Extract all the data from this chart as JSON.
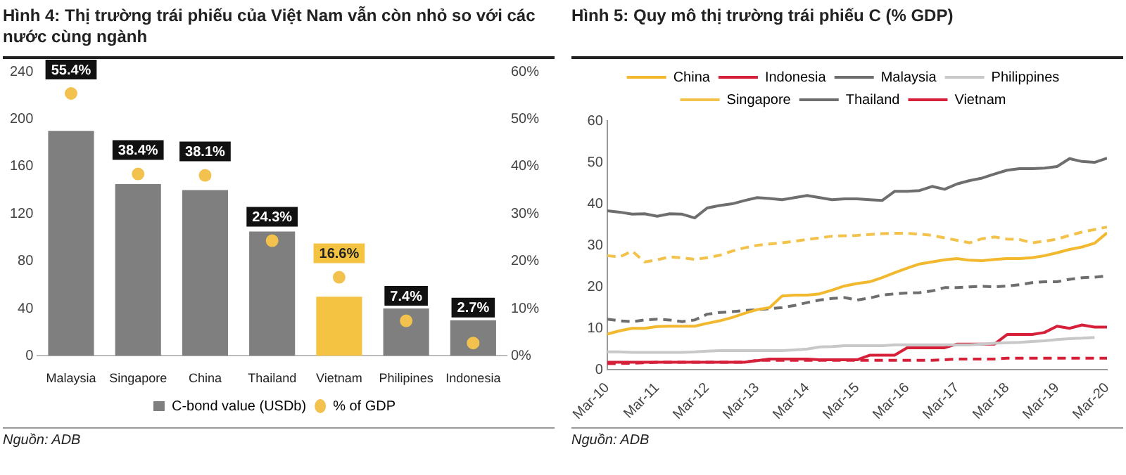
{
  "chart_data": [
    {
      "type": "bar",
      "title": "Hình 4: Thị trường trái phiếu của Việt Nam vẫn còn nhỏ so với các nước cùng ngành",
      "categories": [
        "Malaysia",
        "Singapore",
        "China",
        "Thailand",
        "Vietnam",
        "Philipines",
        "Indonesia"
      ],
      "series": [
        {
          "name": "C-bond value (USDb)",
          "type": "bar",
          "color": "#7f7f7f",
          "colors": [
            "#7f7f7f",
            "#7f7f7f",
            "#7f7f7f",
            "#7f7f7f",
            "#f5c342",
            "#7f7f7f",
            "#7f7f7f"
          ],
          "values": [
            190,
            145,
            140,
            105,
            50,
            40,
            30
          ]
        },
        {
          "name": "% of GDP",
          "type": "scatter",
          "axis": "y2",
          "color": "#f2c14e",
          "values": [
            55.4,
            38.4,
            38.1,
            24.3,
            16.6,
            7.4,
            2.7
          ],
          "data_labels": true,
          "value_labels": [
            "55.4%",
            "38.4%",
            "38.1%",
            "24.3%",
            "16.6%",
            "7.4%",
            "2.7%"
          ]
        }
      ],
      "ylim": [
        0,
        240
      ],
      "yticks": [
        0,
        40,
        80,
        120,
        160,
        200,
        240
      ],
      "y2lim": [
        0,
        60
      ],
      "y2ticks": [
        {
          "value": 0,
          "label": "0%"
        },
        {
          "value": 10,
          "label": "10%"
        },
        {
          "value": 20,
          "label": "20%"
        },
        {
          "value": 30,
          "label": "30%"
        },
        {
          "value": 40,
          "label": "40%"
        },
        {
          "value": 50,
          "label": "50%"
        },
        {
          "value": 60,
          "label": "60%"
        }
      ],
      "grid": false,
      "legend": "bottom",
      "annotations": [
        "Nguồn: ADB"
      ]
    },
    {
      "type": "line",
      "title": "Hình 5: Quy mô thị trường trái phiếu C (% GDP)",
      "x": [
        "2010-03",
        "2010-06",
        "2010-09",
        "2010-12",
        "2011-03",
        "2011-06",
        "2011-09",
        "2011-12",
        "2012-03",
        "2012-06",
        "2012-09",
        "2012-12",
        "2013-03",
        "2013-06",
        "2013-09",
        "2013-12",
        "2014-03",
        "2014-06",
        "2014-09",
        "2014-12",
        "2015-03",
        "2015-06",
        "2015-09",
        "2015-12",
        "2016-03",
        "2016-06",
        "2016-09",
        "2016-12",
        "2017-03",
        "2017-06",
        "2017-09",
        "2017-12",
        "2018-03",
        "2018-06",
        "2018-09",
        "2018-12",
        "2019-03",
        "2019-06",
        "2019-09",
        "2019-12",
        "2020-03"
      ],
      "series": [
        {
          "name": "China",
          "color": "#f2b82e",
          "line_style": "solid",
          "values": [
            8.6,
            9.4,
            10,
            10,
            10.4,
            10.5,
            10.5,
            10.5,
            11.2,
            11.8,
            12.6,
            13.6,
            14.5,
            15,
            17.8,
            18,
            18,
            18.3,
            19.2,
            20.2,
            20.8,
            21.2,
            22.2,
            23.4,
            24.5,
            25.5,
            26,
            26.5,
            26.8,
            26.4,
            26.3,
            26.6,
            26.8,
            26.8,
            27,
            27.5,
            28.2,
            29,
            29.6,
            30.5,
            33
          ]
        },
        {
          "name": "Indonesia",
          "color": "#d6203a",
          "line_style": "dashed",
          "values": [
            1.5,
            1.5,
            1.6,
            1.7,
            1.8,
            1.8,
            1.8,
            1.8,
            1.8,
            1.8,
            1.8,
            1.8,
            2.3,
            2.3,
            2.3,
            2.3,
            2.3,
            2.3,
            2.3,
            2.3,
            2.3,
            2.3,
            2.3,
            2.3,
            2.3,
            2.3,
            2.3,
            2.4,
            2.6,
            2.6,
            2.6,
            2.6,
            2.8,
            2.8,
            2.8,
            2.8,
            2.8,
            2.8,
            2.8,
            2.8,
            2.8
          ]
        },
        {
          "name": "Malaysia",
          "color": "#6e6e6e",
          "line_style": "solid",
          "values": [
            38.3,
            38,
            37.5,
            37.6,
            37,
            37.6,
            37.5,
            36.6,
            39,
            39.6,
            40,
            40.8,
            41.5,
            41.3,
            41,
            41.5,
            42,
            41.5,
            41,
            41.2,
            41.2,
            41,
            40.8,
            43,
            43,
            43.2,
            44.2,
            43.5,
            44.8,
            45.6,
            46.2,
            47.2,
            48.1,
            48.5,
            48.5,
            48.6,
            49,
            50.9,
            50.2,
            50,
            51
          ]
        },
        {
          "name": "Philippines",
          "color": "#c8c8c8",
          "line_style": "solid",
          "values": [
            4.3,
            4.3,
            4.2,
            4.2,
            4.2,
            4.2,
            4.2,
            4.3,
            4.5,
            4.6,
            4.6,
            4.6,
            4.6,
            4.6,
            4.6,
            4.8,
            5,
            5.5,
            5.6,
            5.8,
            5.8,
            5.8,
            5.8,
            6,
            6,
            6,
            6,
            6,
            6,
            6,
            6.2,
            6.4,
            6.5,
            6.6,
            6.8,
            7,
            7.3,
            7.5,
            7.6,
            7.8,
            null
          ]
        },
        {
          "name": "Singapore",
          "color": "#f2c24a",
          "line_style": "dashed",
          "values": [
            27.5,
            27.2,
            28.6,
            26,
            26.5,
            27.2,
            27,
            26.6,
            27,
            27.6,
            28.6,
            29.4,
            30,
            30.3,
            30.6,
            31,
            31.4,
            31.8,
            32.2,
            32.3,
            32.4,
            32.6,
            32.8,
            32.9,
            32.9,
            32.7,
            32.4,
            31.8,
            31.2,
            30.6,
            31.6,
            32,
            31.5,
            31.4,
            30.6,
            31,
            31.5,
            32.4,
            33.2,
            33.8,
            34.4
          ]
        },
        {
          "name": "Thailand",
          "color": "#6e6e6e",
          "line_style": "dashed",
          "values": [
            12.2,
            11.8,
            11.6,
            12,
            12.2,
            12,
            11.6,
            12,
            13.4,
            13.8,
            14,
            14.3,
            14.5,
            14.7,
            15,
            15.5,
            16.2,
            16.8,
            17.2,
            17.4,
            16.8,
            17.3,
            18,
            18.3,
            18.5,
            18.6,
            19,
            19.8,
            19.8,
            20,
            20.1,
            20,
            20.2,
            20.5,
            21,
            21.2,
            21.2,
            21.8,
            22.2,
            22.3,
            22.6
          ]
        },
        {
          "name": "Vietnam",
          "color": "#d6203a",
          "line_style": "solid",
          "values": [
            1.8,
            1.8,
            1.8,
            1.8,
            1.8,
            1.8,
            1.8,
            1.8,
            1.8,
            1.8,
            1.8,
            1.8,
            2.2,
            2.6,
            2.6,
            2.6,
            2.6,
            2.4,
            2.4,
            2.4,
            2.4,
            3.5,
            3.5,
            3.5,
            5.3,
            5.3,
            5.3,
            5.3,
            6.2,
            6.2,
            6.2,
            6.2,
            8.5,
            8.5,
            8.5,
            9,
            10.5,
            10,
            10.8,
            10.3,
            10.3
          ]
        }
      ],
      "xlim": [
        "2010-03",
        "2020-03"
      ],
      "xticks": [
        {
          "value": "2010-03",
          "label": "Mar-10"
        },
        {
          "value": "2011-03",
          "label": "Mar-11"
        },
        {
          "value": "2012-03",
          "label": "Mar-12"
        },
        {
          "value": "2013-03",
          "label": "Mar-13"
        },
        {
          "value": "2014-03",
          "label": "Mar-14"
        },
        {
          "value": "2015-03",
          "label": "Mar-15"
        },
        {
          "value": "2016-03",
          "label": "Mar-16"
        },
        {
          "value": "2017-03",
          "label": "Mar-17"
        },
        {
          "value": "2018-03",
          "label": "Mar-18"
        },
        {
          "value": "2019-03",
          "label": "Mar-19"
        },
        {
          "value": "2020-03",
          "label": "Mar-20"
        }
      ],
      "ylim": [
        0,
        60
      ],
      "yticks": [
        0,
        10,
        20,
        30,
        40,
        50,
        60
      ],
      "grid": false,
      "legend": "top",
      "marker": "none",
      "annotations": [
        "Nguồn: ADB"
      ]
    }
  ]
}
